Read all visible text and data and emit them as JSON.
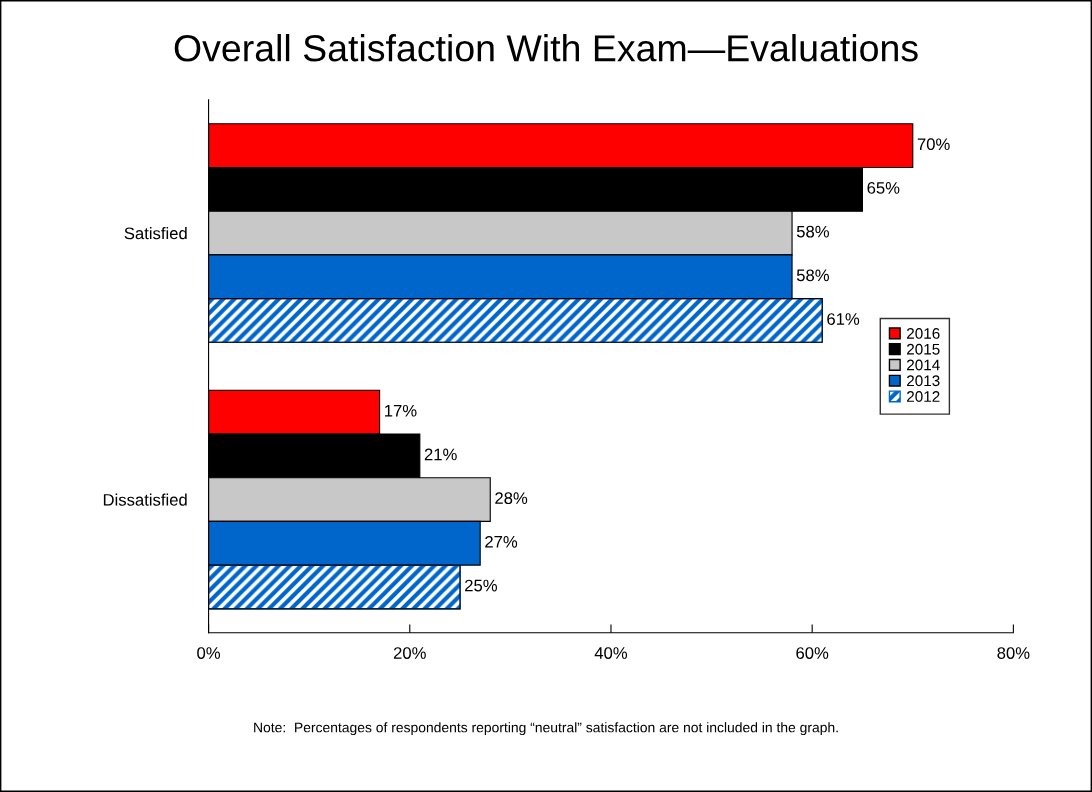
{
  "chart_data": {
    "type": "bar",
    "orientation": "horizontal",
    "title": "Overall Satisfaction With Exam—Evaluations",
    "categories": [
      "Satisfied",
      "Dissatisfied"
    ],
    "series": [
      {
        "name": "2016",
        "color": "#ff0000",
        "values": [
          70,
          17
        ],
        "value_labels": [
          "70%",
          "17%"
        ]
      },
      {
        "name": "2015",
        "color": "#000000",
        "values": [
          65,
          21
        ],
        "value_labels": [
          "65%",
          "21%"
        ]
      },
      {
        "name": "2014",
        "color": "#c8c8c8",
        "values": [
          58,
          28
        ],
        "value_labels": [
          "58%",
          "28%"
        ]
      },
      {
        "name": "2013",
        "color": "#0066cc",
        "values": [
          58,
          27
        ],
        "value_labels": [
          "58%",
          "27%"
        ]
      },
      {
        "name": "2012",
        "color": "#0066cc",
        "values": [
          61,
          25
        ],
        "value_labels": [
          "61%",
          "25%"
        ]
      }
    ],
    "xlim": [
      0,
      80
    ],
    "xticks": [
      {
        "value": 0,
        "label": "0%"
      },
      {
        "value": 20,
        "label": "20%"
      },
      {
        "value": 40,
        "label": "40%"
      },
      {
        "value": 60,
        "label": "60%"
      },
      {
        "value": 80,
        "label": "80%"
      }
    ],
    "grid": false,
    "legend": "right",
    "annotations": [
      "Note:  Percentages of respondents reporting “neutral” satisfaction are not included in the graph."
    ]
  }
}
